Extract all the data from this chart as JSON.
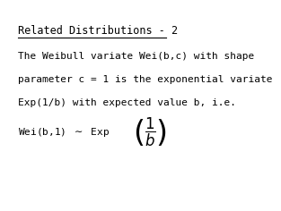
{
  "title": "Related Distributions - 2",
  "line1": "The Weibull variate Wei(b,c) with shape",
  "line2": "parameter c = 1 is the exponential variate",
  "line3": "Exp(1/b) with expected value b, i.e.",
  "background_color": "#ffffff",
  "text_color": "#000000",
  "font_size_title": 8.5,
  "font_size_body": 8.0
}
